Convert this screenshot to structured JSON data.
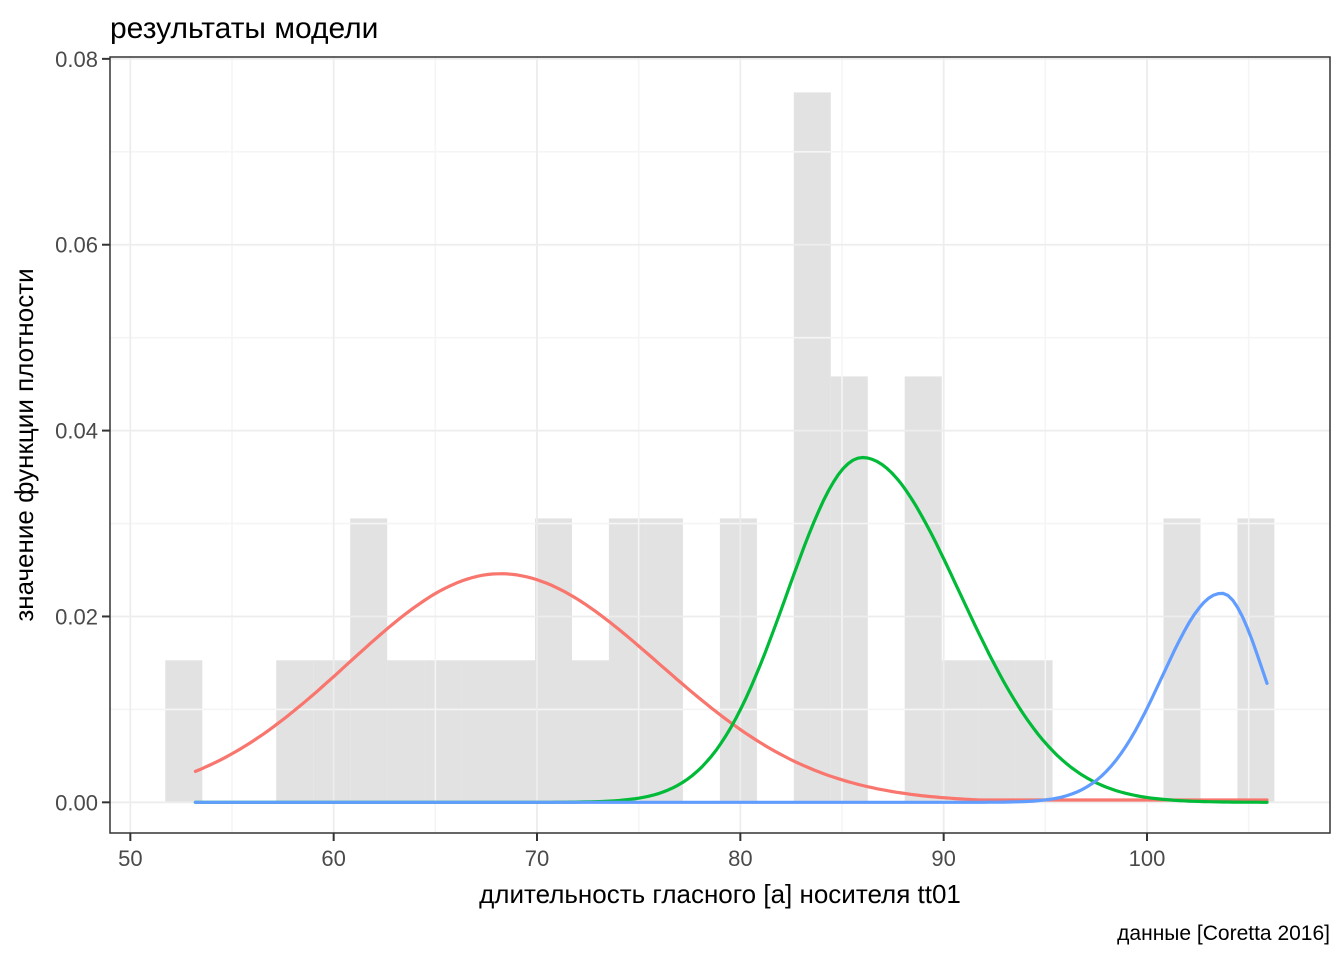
{
  "title": "результаты модели",
  "caption": "данные [Coretta 2016]",
  "chart_data": {
    "type": "bar",
    "subtype": "histogram-with-density-curves",
    "title": "результаты модели",
    "xlabel": "длительность гласного [a] носителя tt01",
    "ylabel": "значение функции плотности",
    "caption": "данные [Coretta 2016]",
    "xlim": [
      49.0,
      109.0
    ],
    "ylim": [
      -0.0033,
      0.0802
    ],
    "grid": "on",
    "legend": "none",
    "x_ticks": [
      50,
      60,
      70,
      80,
      90,
      100
    ],
    "x_tick_labels": [
      "50",
      "60",
      "70",
      "80",
      "90",
      "100"
    ],
    "x_minor_ticks": [
      55,
      65,
      75,
      85,
      95,
      105
    ],
    "y_ticks": [
      0,
      0.02,
      0.04,
      0.06,
      0.08
    ],
    "y_tick_labels": [
      "0.00",
      "0.02",
      "0.04",
      "0.06",
      "0.08"
    ],
    "y_minor_ticks": [
      0.01,
      0.03,
      0.05,
      0.07
    ],
    "histogram": {
      "bin_start": 51.72,
      "bin_width": 1.8182,
      "n": 36,
      "counts": [
        1,
        0,
        0,
        1,
        1,
        2,
        1,
        1,
        1,
        1,
        2,
        1,
        2,
        2,
        0,
        2,
        0,
        5,
        3,
        0,
        3,
        1,
        1,
        1,
        0,
        0,
        0,
        2,
        0,
        2
      ],
      "density_per_count": 0.015278,
      "fill": "#e2e2e2"
    },
    "curves": [
      {
        "name": "component-red",
        "color": "#F8766D",
        "mean": 68.2,
        "sd_left": 7.5,
        "sd_right": 7.8,
        "peak": 0.0246,
        "x_start": 53.2,
        "x_end": 105.9,
        "tail_floor": 0.00025
      },
      {
        "name": "component-green",
        "color": "#00BA38",
        "mean": 86.0,
        "sd_left": 3.7,
        "sd_right": 4.8,
        "peak": 0.0371,
        "x_start": 53.2,
        "x_end": 105.9,
        "tail_floor": 0
      },
      {
        "name": "component-blue",
        "color": "#619CFF",
        "mean": 103.67,
        "sd_left": 2.9,
        "sd_right": 2.1,
        "peak": 0.0225,
        "x_start": 53.2,
        "x_end": 105.9,
        "tail_floor": 0
      }
    ],
    "style": {
      "panel_border_color": "#333333",
      "major_grid_color": "#ededed",
      "minor_grid_color": "#f5f5f5",
      "tick_color": "#333333",
      "tick_label_color": "#4a4a4a",
      "bar_fill": "#e2e2e2"
    }
  }
}
